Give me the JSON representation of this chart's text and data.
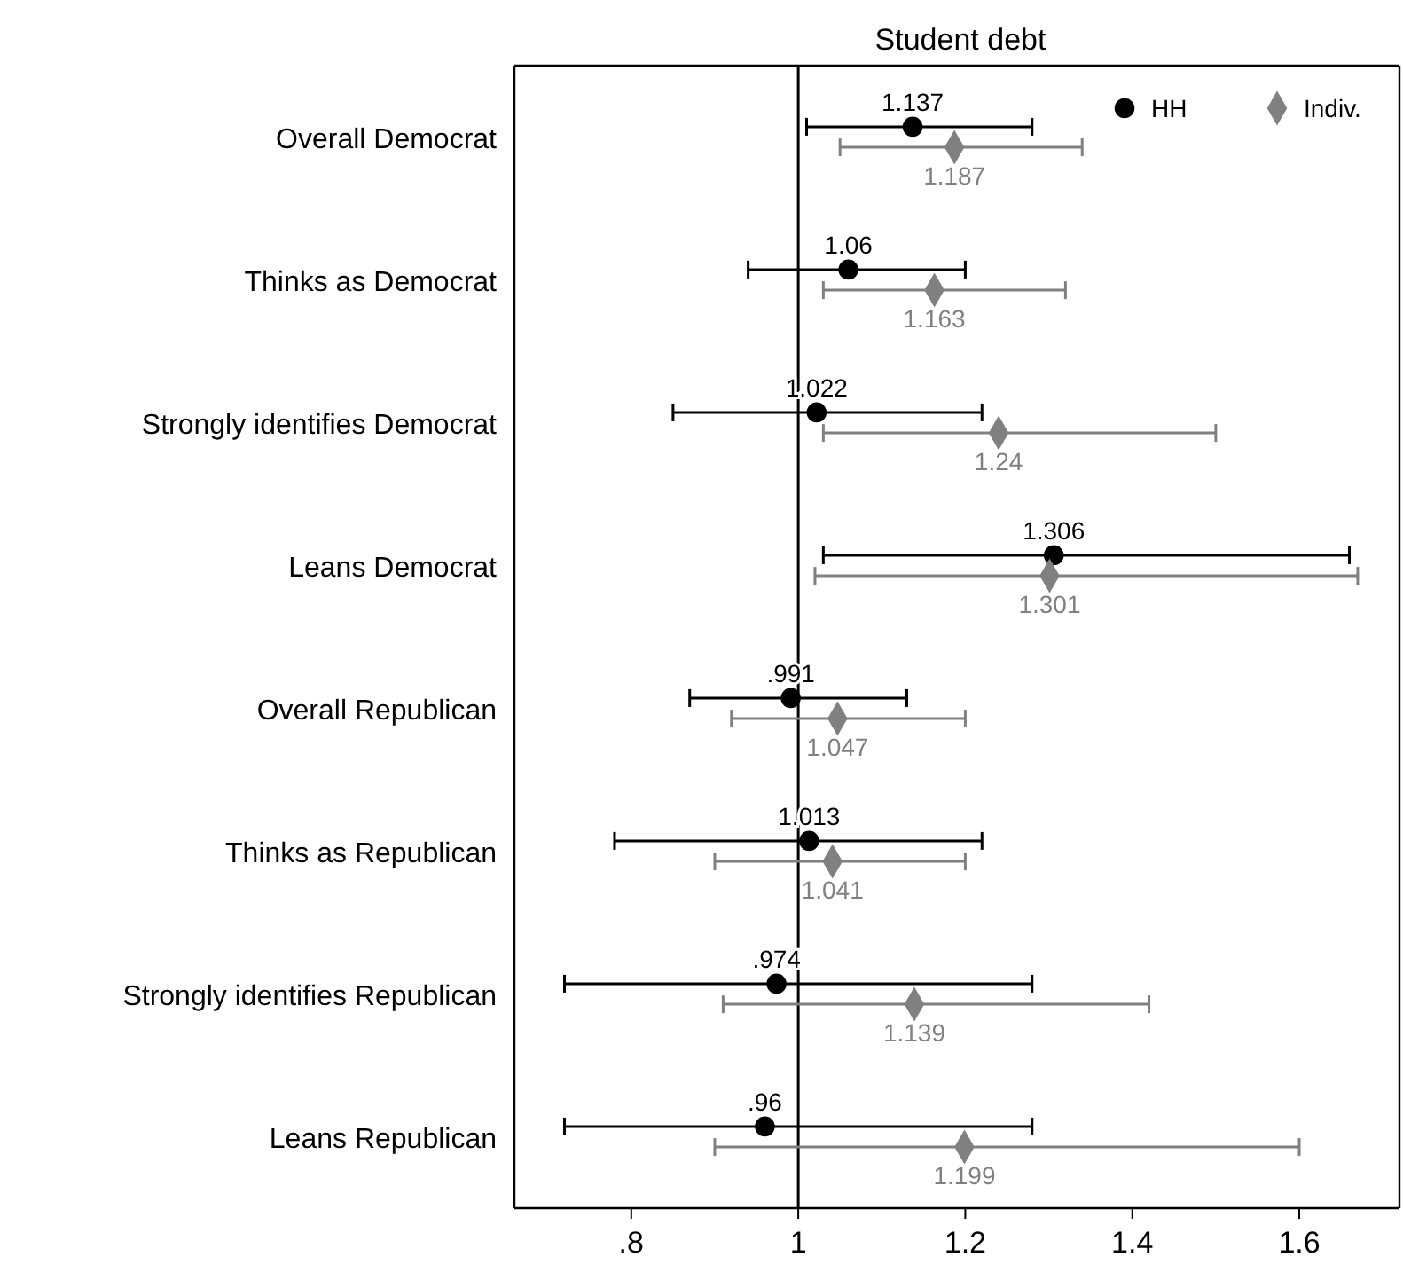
{
  "chart_data": {
    "type": "scatter",
    "orientation": "horizontal",
    "title": "Student debt",
    "categories": [
      "Overall Democrat",
      "Thinks as Democrat",
      "Strongly identifies Democrat",
      "Leans Democrat",
      "Overall Republican",
      "Thinks as Republican",
      "Strongly identifies Republican",
      "Leans Republican"
    ],
    "series": [
      {
        "name": "HH",
        "color": "#000000",
        "marker": "circle",
        "values": [
          1.137,
          1.06,
          1.022,
          1.306,
          0.991,
          1.013,
          0.974,
          0.96
        ],
        "value_labels": [
          "1.137",
          "1.06",
          "1.022",
          "1.306",
          ".991",
          "1.013",
          ".974",
          ".96"
        ],
        "errors": [
          [
            1.01,
            1.28
          ],
          [
            0.94,
            1.2
          ],
          [
            0.85,
            1.22
          ],
          [
            1.03,
            1.66
          ],
          [
            0.87,
            1.13
          ],
          [
            0.78,
            1.22
          ],
          [
            0.72,
            1.28
          ],
          [
            0.72,
            1.28
          ]
        ]
      },
      {
        "name": "Indiv.",
        "color": "#808080",
        "marker": "diamond",
        "values": [
          1.187,
          1.163,
          1.24,
          1.301,
          1.047,
          1.041,
          1.139,
          1.199
        ],
        "value_labels": [
          "1.187",
          "1.163",
          "1.24",
          "1.301",
          "1.047",
          "1.041",
          "1.139",
          "1.199"
        ],
        "errors": [
          [
            1.05,
            1.34
          ],
          [
            1.03,
            1.32
          ],
          [
            1.03,
            1.5
          ],
          [
            1.02,
            1.67
          ],
          [
            0.92,
            1.2
          ],
          [
            0.9,
            1.2
          ],
          [
            0.91,
            1.42
          ],
          [
            0.9,
            1.6
          ]
        ]
      }
    ],
    "xlim": [
      0.66,
      1.72
    ],
    "xticks": [
      {
        "value": 0.8,
        "label": ".8"
      },
      1,
      1.2,
      1.4,
      1.6
    ],
    "ref_lines": [
      {
        "axis": "x",
        "value": 1,
        "color": "#000000"
      }
    ],
    "legend": "top right",
    "grid": false
  }
}
